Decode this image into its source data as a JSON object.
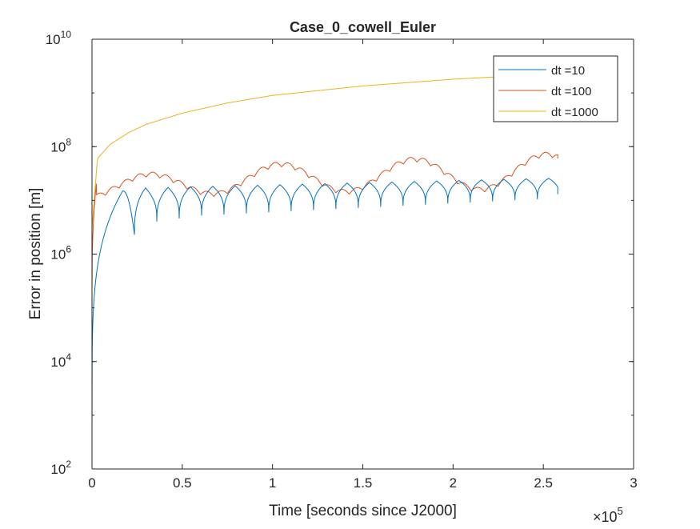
{
  "chart_data": {
    "type": "line",
    "title": "Case_0_cowell_Euler",
    "xlabel": "Time [seconds since J2000]",
    "ylabel": "Error in position [m]",
    "x_scale": "linear",
    "y_scale": "log",
    "xlim": [
      0,
      300000
    ],
    "ylim": [
      100,
      10000000000
    ],
    "x_exponent_label": "×10",
    "x_exponent_power": "5",
    "x_ticks": [
      0,
      50000,
      100000,
      150000,
      200000,
      250000,
      300000
    ],
    "x_tick_labels": [
      "0",
      "0.5",
      "1",
      "1.5",
      "2",
      "2.5",
      "3"
    ],
    "y_ticks": [
      100,
      10000,
      1000000,
      100000000,
      10000000000
    ],
    "y_tick_base": "10",
    "y_tick_powers": [
      "2",
      "4",
      "6",
      "8",
      "10"
    ],
    "grid": false,
    "legend_position": "top-right",
    "series": [
      {
        "name": "dt =10",
        "color": "#0072BD",
        "x_end": 258000,
        "start_value": 500,
        "first_peak": [
          17000,
          15000000
        ],
        "oscillation_period": 12400,
        "first_trough_x": 23500,
        "peak_envelope": [
          [
            28000,
            17000000
          ],
          [
            258000,
            26000000
          ]
        ],
        "trough_envelope": [
          [
            23500,
            2300000
          ],
          [
            35000,
            4000000
          ],
          [
            60000,
            5200000
          ],
          [
            258000,
            11000000
          ]
        ],
        "end_value": 13000000
      },
      {
        "name": "dt =100",
        "color": "#D95319",
        "x_end": 258000,
        "start_value": 200000,
        "first_peak": [
          7000,
          22000000
        ],
        "oscillation_period": 7500,
        "slow_cycle_period": 74000,
        "slow_cycle_peaks": [
          [
            30000,
            33000000
          ],
          [
            82000,
            50000000
          ],
          [
            157000,
            60000000
          ],
          [
            234000,
            82000000
          ]
        ],
        "slow_cycle_troughs": [
          [
            0,
            10000000
          ],
          [
            55000,
            12000000
          ],
          [
            102000,
            12000000
          ],
          [
            176000,
            14000000
          ]
        ],
        "end_value": 60000000
      },
      {
        "name": "dt =1000",
        "color": "#EDB120",
        "x_end": 258000,
        "points": [
          [
            0,
            3000000
          ],
          [
            3000,
            60000000
          ],
          [
            10000,
            110000000
          ],
          [
            20000,
            180000000
          ],
          [
            30000,
            260000000
          ],
          [
            50000,
            420000000
          ],
          [
            75000,
            650000000
          ],
          [
            100000,
            900000000
          ],
          [
            150000,
            1350000000
          ],
          [
            200000,
            1800000000
          ],
          [
            258000,
            2300000000
          ]
        ]
      }
    ]
  }
}
